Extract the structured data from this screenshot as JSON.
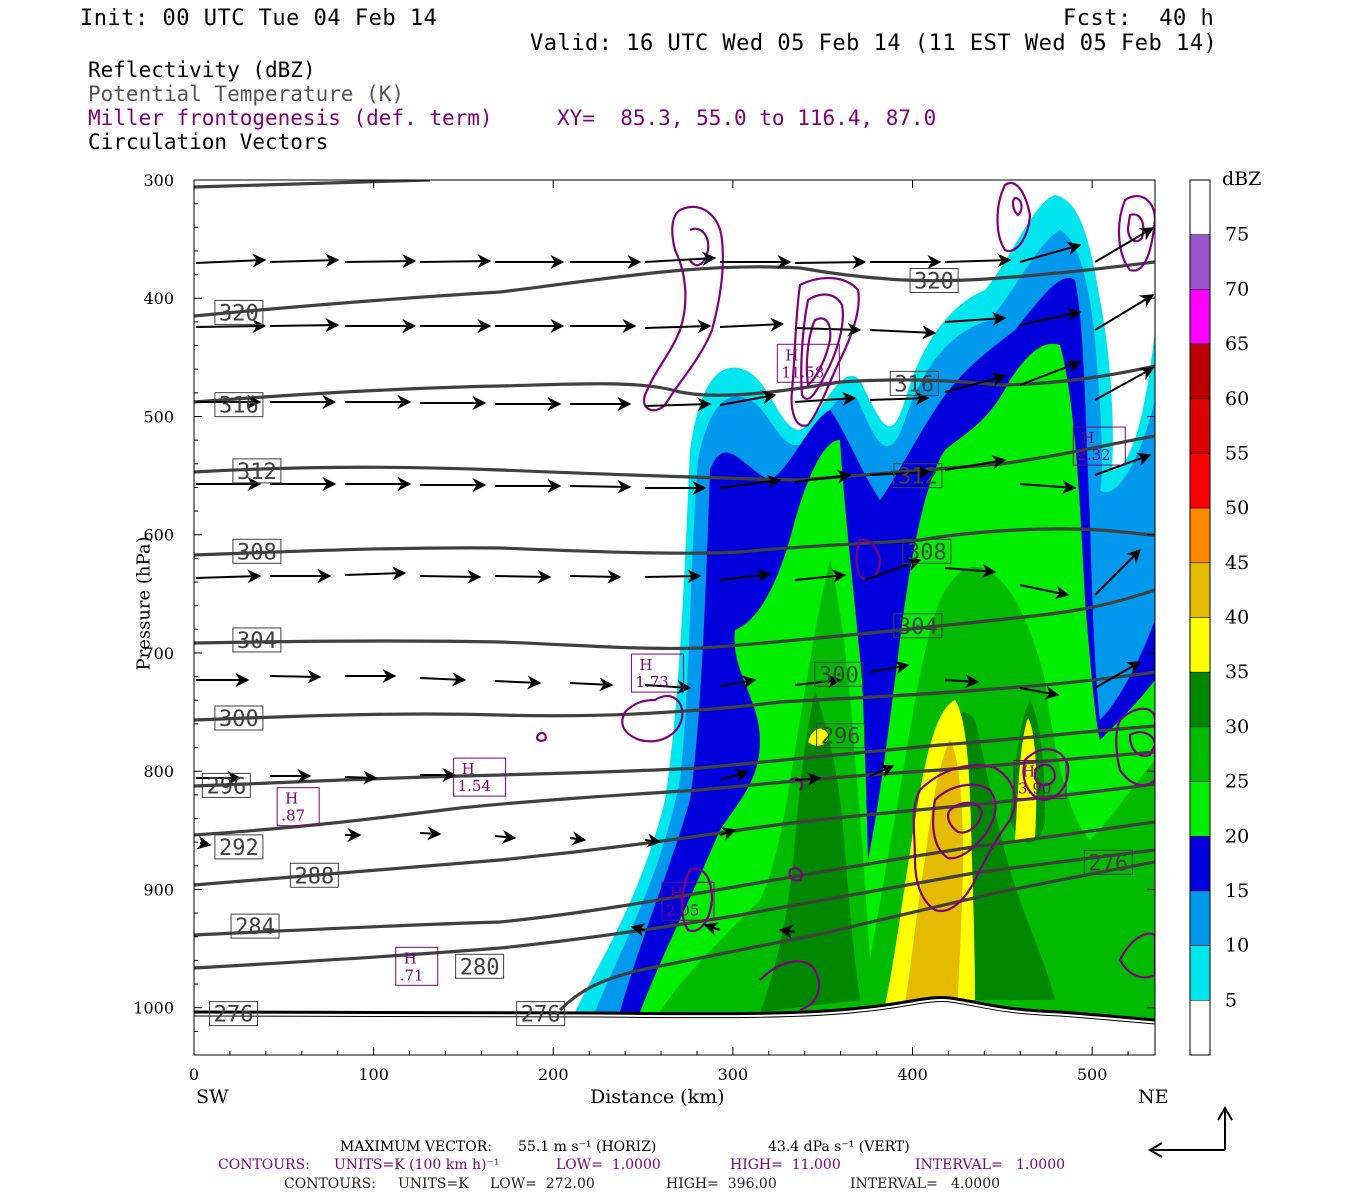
{
  "header": {
    "init": "Init: 00 UTC Tue 04 Feb 14",
    "fcst": "Fcst:  40 h",
    "valid": "Valid: 16 UTC Wed 05 Feb 14 (11 EST Wed 05 Feb 14)"
  },
  "legend": {
    "line1": "Reflectivity (dBZ)",
    "line2": "Potential Temperature (K)",
    "line3": "Miller frontogenesis (def. term)",
    "xy": "XY=  85.3, 55.0 to 116.4, 87.0",
    "line4": "Circulation Vectors"
  },
  "colors": {
    "dbz": [
      "#ffffff",
      "#00e5ee",
      "#0099ee",
      "#0000dd",
      "#00ee00",
      "#00bb00",
      "#008800",
      "#ffff00",
      "#e5bb00",
      "#ff8800",
      "#ff0000",
      "#dd0000",
      "#bb0000",
      "#ff00ff",
      "#9955cc"
    ],
    "theta": "#404040",
    "fronto": "#800080",
    "terrain": "#000000"
  },
  "footer": {
    "vec_label": "MAXIMUM VECTOR:",
    "vec_horiz": "55.1 m s⁻¹ (HORIZ)",
    "vec_vert": "43.4 dPa s⁻¹ (VERT)",
    "c1_label": "CONTOURS:",
    "c1_units": "UNITS=K (100 km h)⁻¹",
    "c1_low": "LOW=  1.0000",
    "c1_high": "HIGH=  11.000",
    "c1_int": "INTERVAL=   1.0000",
    "c2_label": "CONTOURS:",
    "c2_units": "UNITS=K",
    "c2_low": "LOW=  272.00",
    "c2_high": "HIGH=  396.00",
    "c2_int": "INTERVAL=   4.0000"
  },
  "chart_data": {
    "type": "heatmap",
    "title": "",
    "xlabel": "Distance (km)",
    "ylabel": "Pressure (hPa)",
    "xlim": [
      0,
      535
    ],
    "ylim": [
      1040,
      300
    ],
    "x_ticks": [
      0,
      100,
      200,
      300,
      400,
      500
    ],
    "y_ticks": [
      300,
      400,
      500,
      600,
      700,
      800,
      900,
      1000
    ],
    "x_end_labels": {
      "left": "SW",
      "right": "NE"
    },
    "colorbar": {
      "label": "dBZ",
      "ticks": [
        5,
        10,
        15,
        20,
        25,
        30,
        35,
        40,
        45,
        50,
        55,
        60,
        65,
        70,
        75
      ]
    },
    "theta_labels": [
      {
        "v": "320",
        "x": 25,
        "p": 412
      },
      {
        "v": "316",
        "x": 25,
        "p": 490
      },
      {
        "v": "312",
        "x": 35,
        "p": 546
      },
      {
        "v": "308",
        "x": 35,
        "p": 614
      },
      {
        "v": "304",
        "x": 35,
        "p": 689
      },
      {
        "v": "300",
        "x": 25,
        "p": 755
      },
      {
        "v": "296",
        "x": 18,
        "p": 812
      },
      {
        "v": "292",
        "x": 25,
        "p": 864
      },
      {
        "v": "288",
        "x": 67,
        "p": 888
      },
      {
        "v": "284",
        "x": 34,
        "p": 931
      },
      {
        "v": "280",
        "x": 159,
        "p": 965
      },
      {
        "v": "276",
        "x": 22,
        "p": 1005
      },
      {
        "v": "276",
        "x": 193,
        "p": 1005
      },
      {
        "v": "320",
        "x": 412,
        "p": 385
      },
      {
        "v": "316",
        "x": 401,
        "p": 472
      },
      {
        "v": "312",
        "x": 403,
        "p": 550
      },
      {
        "v": "308",
        "x": 408,
        "p": 614
      },
      {
        "v": "304",
        "x": 403,
        "p": 677
      },
      {
        "v": "300",
        "x": 359,
        "p": 718
      },
      {
        "v": "296",
        "x": 360,
        "p": 770
      },
      {
        "v": "276",
        "x": 509,
        "p": 877
      }
    ],
    "fronto_maxima": [
      {
        "label": "H",
        "value": "11.58",
        "x": 342,
        "p": 455
      },
      {
        "label": "H",
        "value": "2.32",
        "x": 504,
        "p": 525
      },
      {
        "label": "H",
        "value": "1.73",
        "x": 258,
        "p": 717
      },
      {
        "label": "H",
        "value": "1.54",
        "x": 159,
        "p": 805
      },
      {
        "label": "H",
        "value": ".87",
        "x": 58,
        "p": 830
      },
      {
        "label": "H",
        "value": "3.90",
        "x": 471,
        "p": 807
      },
      {
        "label": "H",
        "value": "2.05",
        "x": 275,
        "p": 910
      },
      {
        "label": "H",
        "value": ".71",
        "x": 124,
        "p": 965
      }
    ]
  }
}
